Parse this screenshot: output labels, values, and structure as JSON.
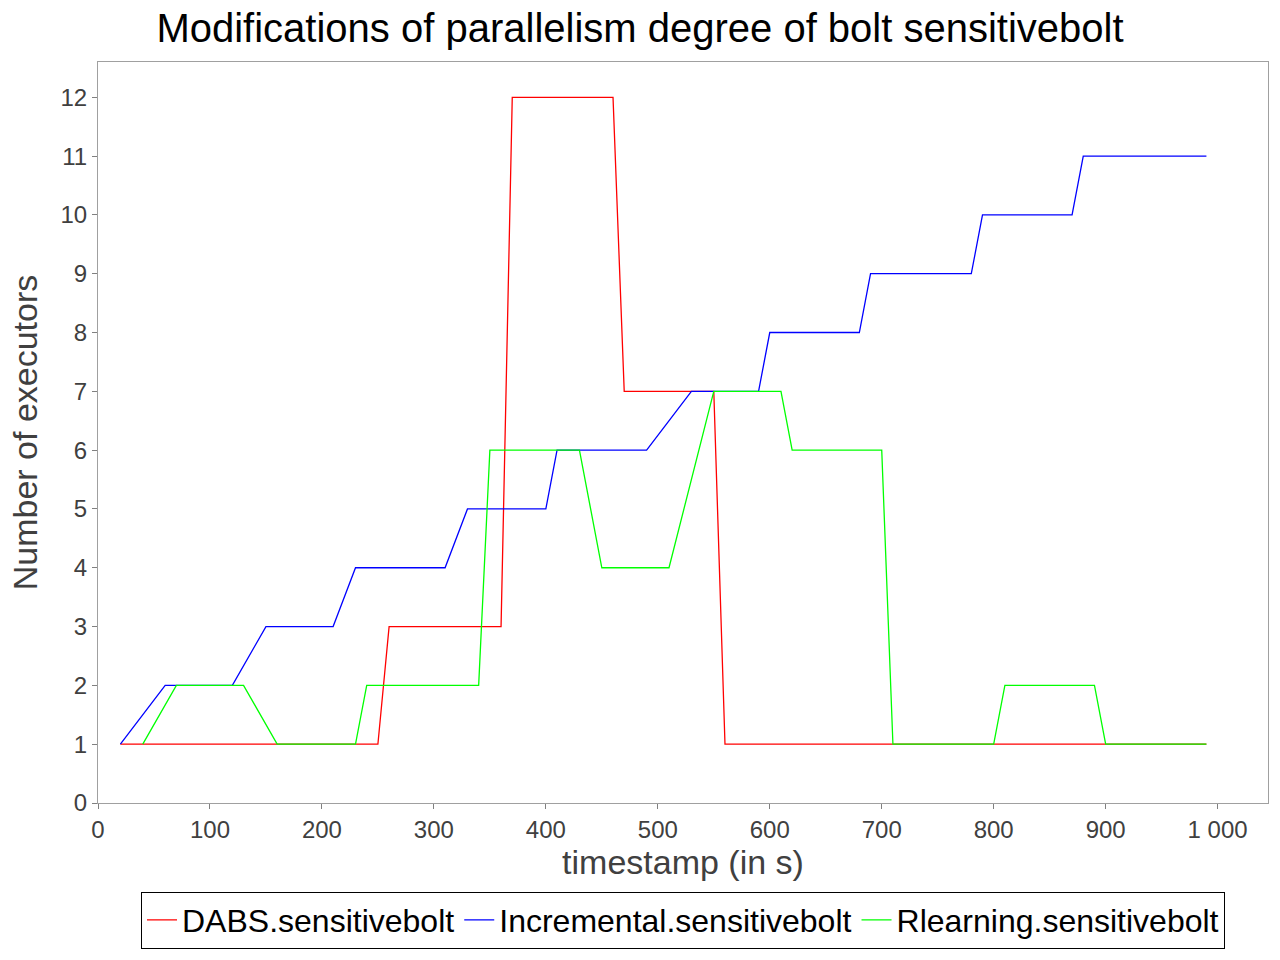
{
  "chart_data": {
    "type": "line",
    "title": "Modifications of parallelism degree of bolt sensitivebolt",
    "x_label": "timestamp (in s)",
    "y_label": "Number of executors",
    "xlim": [
      0,
      1045
    ],
    "ylim": [
      0,
      12.6
    ],
    "xticks": [
      0,
      100,
      200,
      300,
      400,
      500,
      600,
      700,
      800,
      900,
      {
        "value": 1000,
        "label": "1 000"
      }
    ],
    "yticks": [
      0,
      1,
      2,
      3,
      4,
      5,
      6,
      7,
      8,
      9,
      10,
      11,
      12
    ],
    "grid": false,
    "legend": "bottom",
    "series": [
      {
        "name": "DABS.sensitivebolt",
        "color": "#ff0000",
        "x": [
          20,
          250,
          260,
          360,
          370,
          460,
          470,
          550,
          560,
          990
        ],
        "values": [
          1,
          1,
          3,
          3,
          12,
          12,
          7,
          7,
          1,
          1
        ]
      },
      {
        "name": "Incremental.sensitivebolt",
        "color": "#0000ff",
        "x": [
          20,
          60,
          120,
          150,
          210,
          230,
          310,
          330,
          400,
          410,
          490,
          530,
          590,
          600,
          680,
          690,
          780,
          790,
          870,
          880,
          990
        ],
        "values": [
          1,
          2,
          2,
          3,
          3,
          4,
          4,
          5,
          5,
          6,
          6,
          7,
          7,
          8,
          8,
          9,
          9,
          10,
          10,
          11,
          11
        ]
      },
      {
        "name": "Rlearning.sensitivebolt",
        "color": "#00ff00",
        "x": [
          40,
          70,
          130,
          160,
          230,
          240,
          340,
          350,
          430,
          450,
          510,
          550,
          610,
          620,
          700,
          710,
          800,
          810,
          890,
          900,
          990
        ],
        "values": [
          1,
          2,
          2,
          1,
          1,
          2,
          2,
          6,
          6,
          4,
          4,
          7,
          7,
          6,
          6,
          1,
          1,
          2,
          2,
          1,
          1
        ]
      }
    ]
  }
}
